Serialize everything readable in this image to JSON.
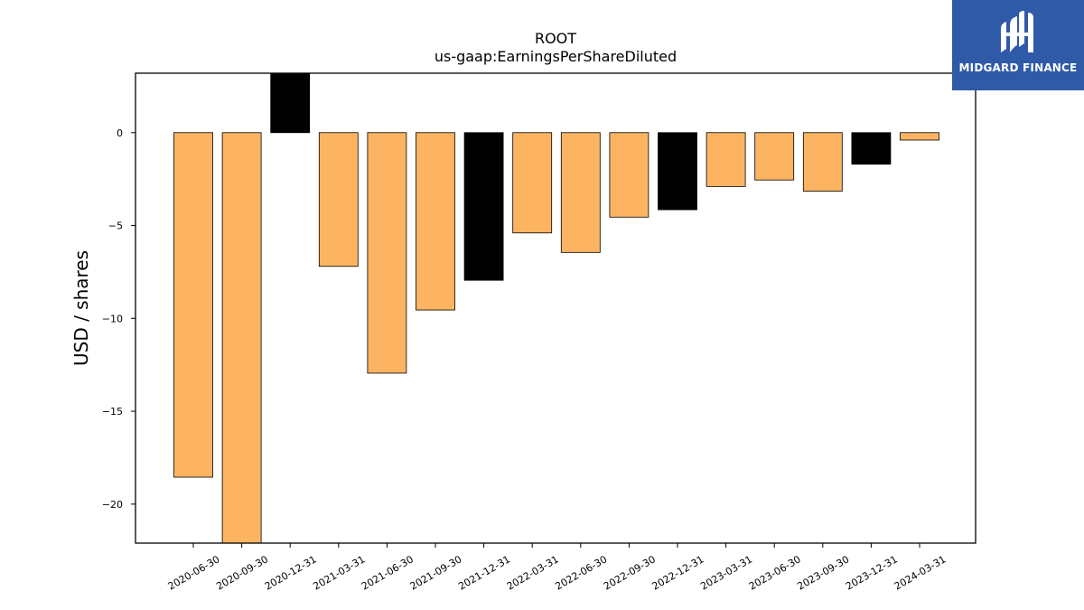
{
  "brand": {
    "name": "MIDGARD FINANCE",
    "logo_icon": "midgard-m-logo-icon",
    "background": "#2f5aa8"
  },
  "chart_data": {
    "type": "bar",
    "title": "ROOT",
    "subtitle": "us-gaap:EarningsPerShareDiluted",
    "xlabel": "",
    "ylabel": "USD / shares",
    "ylim": [
      -22.1,
      3.2
    ],
    "yticks": [
      0,
      -5,
      -10,
      -15,
      -20
    ],
    "ytick_labels": [
      "0",
      "−5",
      "−10",
      "−15",
      "−20"
    ],
    "grid": false,
    "categories": [
      "2020-06-30",
      "2020-09-30",
      "2020-12-31",
      "2021-03-31",
      "2021-06-30",
      "2021-09-30",
      "2021-12-31",
      "2022-03-31",
      "2022-06-30",
      "2022-09-30",
      "2022-12-31",
      "2023-03-31",
      "2023-06-30",
      "2023-09-30",
      "2023-12-31",
      "2024-03-31"
    ],
    "values": [
      -18.55,
      -22.1,
      3.3,
      -7.2,
      -12.95,
      -9.55,
      -7.95,
      -5.4,
      -6.45,
      -4.55,
      -4.15,
      -2.9,
      -2.55,
      -3.15,
      -1.7,
      -0.4
    ],
    "colors": [
      "#fdb462",
      "#fdb462",
      "#000000",
      "#fdb462",
      "#fdb462",
      "#fdb462",
      "#000000",
      "#fdb462",
      "#fdb462",
      "#fdb462",
      "#000000",
      "#fdb462",
      "#fdb462",
      "#fdb462",
      "#000000",
      "#fdb462"
    ]
  }
}
